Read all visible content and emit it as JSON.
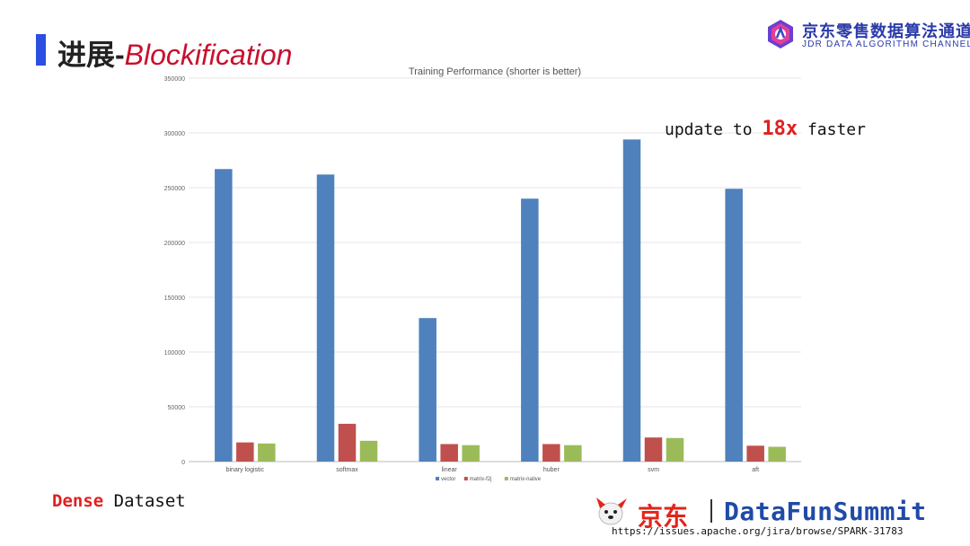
{
  "slide": {
    "title_cn": "进展",
    "title_sep": "-",
    "title_en": "Blockification",
    "accent_color": "#2b4fe0",
    "title_en_color": "#c8102e"
  },
  "logo": {
    "cn": "京东零售数据算法通道",
    "en": "JDR DATA ALGORITHM CHANNEL",
    "icon": "jdr-logo-icon"
  },
  "note": {
    "prefix": "update to ",
    "highlight": "18x",
    "suffix": " faster"
  },
  "dataset": {
    "highlight": "Dense",
    "rest": " Dataset"
  },
  "footer": {
    "jd_cn": "京东",
    "brand": "DataFunSummit",
    "url": "https://issues.apache.org/jira/browse/SPARK-31783",
    "mascot_icon": "jd-dog-mascot-icon"
  },
  "chart_data": {
    "type": "bar",
    "title": "Training Performance (shorter is better)",
    "categories": [
      "binary logistic",
      "softmax",
      "linear",
      "huber",
      "svm",
      "aft"
    ],
    "series": [
      {
        "name": "vector",
        "color": "#4f81bd",
        "values": [
          267000,
          262000,
          131000,
          240000,
          294000,
          249000
        ]
      },
      {
        "name": "matrix-f2j",
        "color": "#c0504d",
        "values": [
          17500,
          34500,
          16000,
          16000,
          22000,
          14500
        ]
      },
      {
        "name": "matrix-native",
        "color": "#9bbb59",
        "values": [
          16500,
          19000,
          15000,
          15000,
          21500,
          13500
        ]
      }
    ],
    "ylim": [
      0,
      350000
    ],
    "yticks": [
      0,
      50000,
      100000,
      150000,
      200000,
      250000,
      300000,
      350000
    ],
    "grid": true,
    "legend": "bottom",
    "xlabel": "",
    "ylabel": ""
  }
}
